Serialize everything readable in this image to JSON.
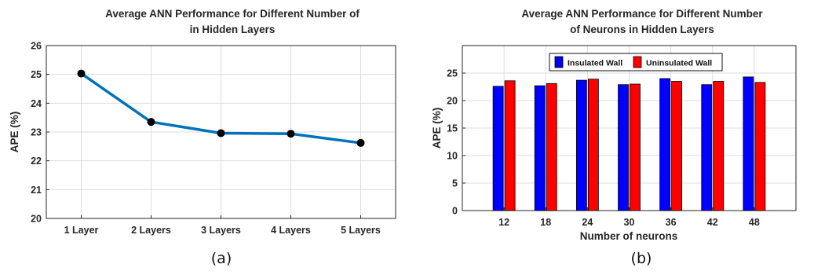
{
  "chart_data": [
    {
      "type": "line",
      "title_lines": [
        "Average ANN Performance for Different Number of",
        "in Hidden Layers"
      ],
      "xlabel": "",
      "ylabel": "APE (%)",
      "categories": [
        "1 Layer",
        "2 Layers",
        "3 Layers",
        "4 Layers",
        "5 Layers"
      ],
      "values": [
        25.03,
        23.35,
        22.96,
        22.94,
        22.62
      ],
      "ylim": [
        20,
        26
      ],
      "yticks": [
        20,
        21,
        22,
        23,
        24,
        25,
        26
      ],
      "grid": true,
      "line_color": "#0072bd",
      "marker_color": "#000000",
      "caption": "(a)"
    },
    {
      "type": "bar",
      "title_lines": [
        "Average ANN Performance for Different Number",
        "of Neurons in Hidden Layers"
      ],
      "xlabel": "Number of neurons",
      "ylabel": "APE (%)",
      "categories": [
        "12",
        "18",
        "24",
        "30",
        "36",
        "42",
        "48"
      ],
      "series": [
        {
          "name": "Insulated Wall",
          "color": "#0000ff",
          "values": [
            22.6,
            22.7,
            23.7,
            22.9,
            24.0,
            22.9,
            24.3
          ]
        },
        {
          "name": "Uninsulated Wall",
          "color": "#ff0000",
          "values": [
            23.6,
            23.1,
            23.9,
            23.0,
            23.5,
            23.5,
            23.3
          ]
        }
      ],
      "ylim": [
        0,
        30
      ],
      "yticks": [
        0,
        5,
        10,
        15,
        20,
        25
      ],
      "grid": true,
      "legend": "top",
      "caption": "(b)"
    }
  ]
}
